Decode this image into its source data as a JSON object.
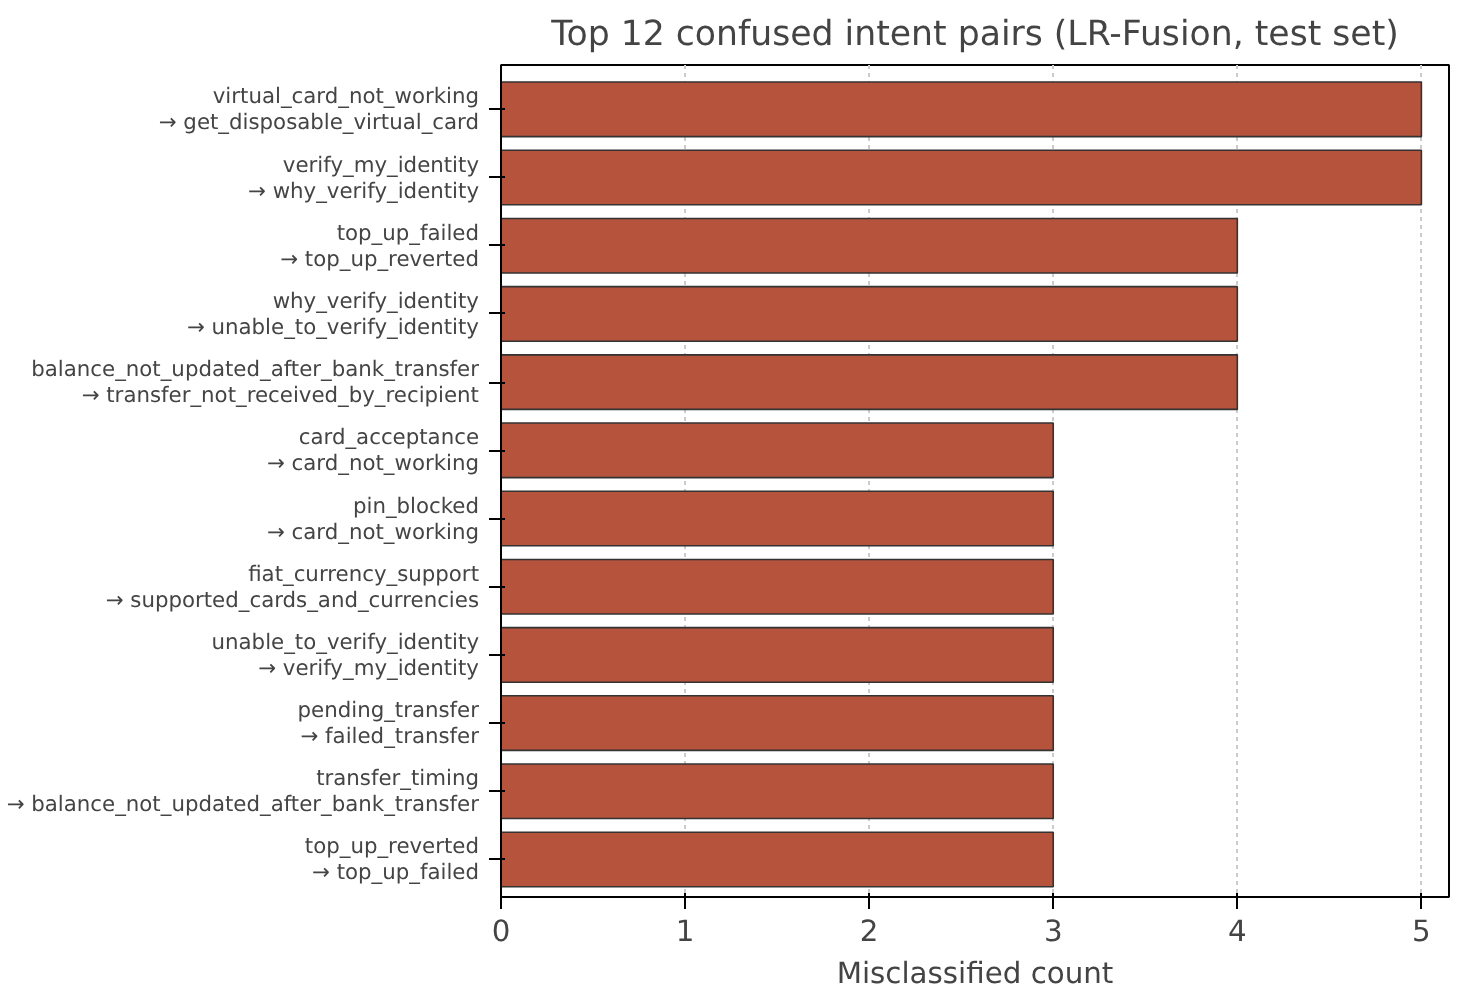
{
  "chart_data": {
    "type": "bar",
    "orientation": "horizontal",
    "title": "Top 12 confused intent pairs (LR-Fusion, test set)",
    "xlabel": "Misclassified count",
    "categories": [
      "virtual_card_not_working\n→ get_disposable_virtual_card",
      "verify_my_identity\n→ why_verify_identity",
      "top_up_failed\n→ top_up_reverted",
      "why_verify_identity\n→ unable_to_verify_identity",
      "balance_not_updated_after_bank_transfer\n→ transfer_not_received_by_recipient",
      "card_acceptance\n→ card_not_working",
      "pin_blocked\n→ card_not_working",
      "fiat_currency_support\n→ supported_cards_and_currencies",
      "unable_to_verify_identity\n→ verify_my_identity",
      "pending_transfer\n→ failed_transfer",
      "transfer_timing\n→ balance_not_updated_after_bank_transfer",
      "top_up_reverted\n→ top_up_failed"
    ],
    "values": [
      5,
      5,
      4,
      4,
      4,
      3,
      3,
      3,
      3,
      3,
      3,
      3
    ],
    "color": "#b5533c",
    "xlim": [
      0,
      5.15
    ],
    "xticks": [
      0,
      1,
      2,
      3,
      4,
      5
    ],
    "grid": "x"
  }
}
